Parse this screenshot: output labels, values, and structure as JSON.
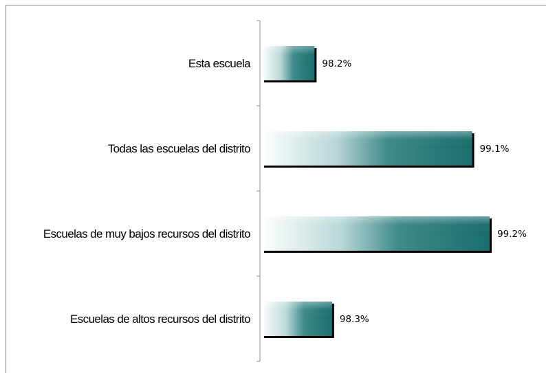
{
  "chart_data": {
    "type": "bar",
    "orientation": "horizontal",
    "categories": [
      "Esta escuela",
      "Todas las escuelas del distrito",
      "Escuelas de muy bajos recursos del distrito",
      "Escuelas de altos recursos del distrito"
    ],
    "values": [
      98.2,
      99.1,
      99.2,
      98.3
    ],
    "value_labels": [
      "98.2%",
      "99.1%",
      "99.2%",
      "98.3%"
    ],
    "xlim": [
      97.9,
      99.4
    ],
    "grid": false,
    "legend": "none"
  },
  "colors": {
    "bar_dark": "#1a6e6e",
    "bar_mid": "#9cc6c6",
    "bar_light": "#ffffff",
    "bar_shadow": "#000000",
    "axis": "#8c8c8c"
  }
}
